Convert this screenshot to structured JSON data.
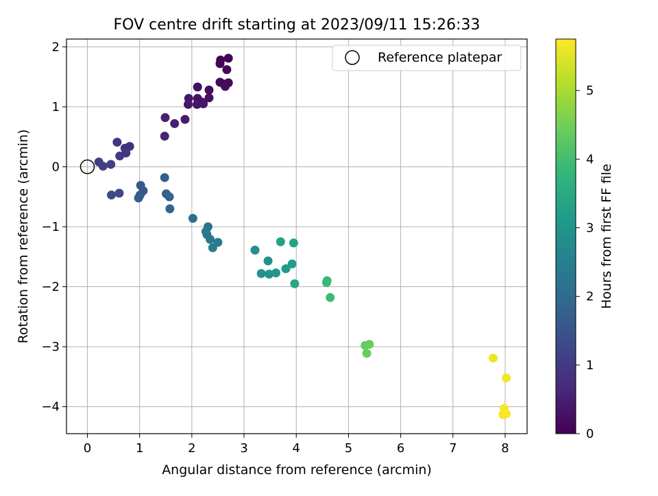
{
  "chart_data": {
    "type": "scatter",
    "title": "FOV centre drift starting at 2023/09/11 15:26:33",
    "xlabel": "Angular distance from reference (arcmin)",
    "ylabel": "Rotation from reference (arcmin)",
    "xlim": [
      -0.4,
      8.42
    ],
    "ylim": [
      -4.45,
      2.13
    ],
    "xticks": [
      0,
      1,
      2,
      3,
      4,
      5,
      6,
      7,
      8
    ],
    "xtick_labels": [
      "0",
      "1",
      "2",
      "3",
      "4",
      "5",
      "6",
      "7",
      "8"
    ],
    "yticks": [
      -4,
      -3,
      -2,
      -1,
      0,
      1,
      2
    ],
    "ytick_labels": [
      "−4",
      "−3",
      "−2",
      "−1",
      "0",
      "1",
      "2"
    ],
    "grid": true,
    "legend": {
      "position": "top-right",
      "entries": [
        "Reference platepar"
      ]
    },
    "reference_point": {
      "label": "Reference platepar",
      "x": 0,
      "y": 0
    },
    "colorbar": {
      "label": "Hours from first FF file",
      "colormap": "viridis",
      "range": [
        0,
        5.75
      ],
      "ticks": [
        0,
        1,
        2,
        3,
        4,
        5
      ],
      "tick_labels": [
        "0",
        "1",
        "2",
        "3",
        "4",
        "5"
      ],
      "stops": [
        "#440154",
        "#482878",
        "#3e4989",
        "#31688e",
        "#26828e",
        "#1f9e89",
        "#35b779",
        "#6ece58",
        "#b5de2b",
        "#fde725"
      ]
    },
    "points": [
      {
        "x": 2.55,
        "y": 1.78,
        "t": 0.02
      },
      {
        "x": 2.7,
        "y": 1.81,
        "t": 0.04
      },
      {
        "x": 2.54,
        "y": 1.72,
        "t": 0.06
      },
      {
        "x": 2.67,
        "y": 1.62,
        "t": 0.08
      },
      {
        "x": 2.54,
        "y": 1.41,
        "t": 0.1
      },
      {
        "x": 2.61,
        "y": 1.38,
        "t": 0.12
      },
      {
        "x": 2.7,
        "y": 1.4,
        "t": 0.14
      },
      {
        "x": 2.64,
        "y": 1.34,
        "t": 0.16
      },
      {
        "x": 2.33,
        "y": 1.28,
        "t": 0.2
      },
      {
        "x": 2.11,
        "y": 1.33,
        "t": 0.22
      },
      {
        "x": 2.33,
        "y": 1.15,
        "t": 0.25
      },
      {
        "x": 2.11,
        "y": 1.14,
        "t": 0.28
      },
      {
        "x": 2.19,
        "y": 1.08,
        "t": 0.3
      },
      {
        "x": 2.1,
        "y": 1.04,
        "t": 0.32
      },
      {
        "x": 2.22,
        "y": 1.05,
        "t": 0.34
      },
      {
        "x": 1.94,
        "y": 1.14,
        "t": 0.36
      },
      {
        "x": 1.93,
        "y": 1.04,
        "t": 0.38
      },
      {
        "x": 1.87,
        "y": 0.79,
        "t": 0.42
      },
      {
        "x": 1.67,
        "y": 0.72,
        "t": 0.48
      },
      {
        "x": 1.49,
        "y": 0.82,
        "t": 0.52
      },
      {
        "x": 1.48,
        "y": 0.51,
        "t": 0.58
      },
      {
        "x": 0.81,
        "y": 0.34,
        "t": 0.8
      },
      {
        "x": 0.72,
        "y": 0.31,
        "t": 0.84
      },
      {
        "x": 0.57,
        "y": 0.41,
        "t": 0.88
      },
      {
        "x": 0.74,
        "y": 0.23,
        "t": 0.92
      },
      {
        "x": 0.62,
        "y": 0.18,
        "t": 0.96
      },
      {
        "x": 0.22,
        "y": 0.08,
        "t": 1.02
      },
      {
        "x": 0.45,
        "y": 0.04,
        "t": 1.06
      },
      {
        "x": 0.3,
        "y": 0.01,
        "t": 1.1
      },
      {
        "x": 0.46,
        "y": -0.47,
        "t": 1.25
      },
      {
        "x": 0.61,
        "y": -0.44,
        "t": 1.3
      },
      {
        "x": 1.02,
        "y": -0.31,
        "t": 1.55
      },
      {
        "x": 1.07,
        "y": -0.4,
        "t": 1.6
      },
      {
        "x": 1.01,
        "y": -0.47,
        "t": 1.65
      },
      {
        "x": 0.98,
        "y": -0.52,
        "t": 1.68
      },
      {
        "x": 1.48,
        "y": -0.18,
        "t": 1.75
      },
      {
        "x": 1.51,
        "y": -0.45,
        "t": 1.8
      },
      {
        "x": 1.57,
        "y": -0.5,
        "t": 1.84
      },
      {
        "x": 1.58,
        "y": -0.7,
        "t": 1.88
      },
      {
        "x": 2.02,
        "y": -0.86,
        "t": 2.1
      },
      {
        "x": 2.31,
        "y": -1.0,
        "t": 2.2
      },
      {
        "x": 2.27,
        "y": -1.08,
        "t": 2.24
      },
      {
        "x": 2.29,
        "y": -1.13,
        "t": 2.28
      },
      {
        "x": 2.35,
        "y": -1.21,
        "t": 2.32
      },
      {
        "x": 2.5,
        "y": -1.26,
        "t": 2.36
      },
      {
        "x": 2.4,
        "y": -1.35,
        "t": 2.4
      },
      {
        "x": 3.21,
        "y": -1.39,
        "t": 2.8
      },
      {
        "x": 3.46,
        "y": -1.57,
        "t": 2.9
      },
      {
        "x": 3.33,
        "y": -1.78,
        "t": 2.95
      },
      {
        "x": 3.48,
        "y": -1.79,
        "t": 3.0
      },
      {
        "x": 3.61,
        "y": -1.77,
        "t": 3.05
      },
      {
        "x": 3.8,
        "y": -1.7,
        "t": 3.15
      },
      {
        "x": 3.92,
        "y": -1.62,
        "t": 3.2
      },
      {
        "x": 3.7,
        "y": -1.25,
        "t": 3.3
      },
      {
        "x": 3.95,
        "y": -1.27,
        "t": 3.35
      },
      {
        "x": 3.97,
        "y": -1.95,
        "t": 3.4
      },
      {
        "x": 4.58,
        "y": -1.93,
        "t": 3.85
      },
      {
        "x": 4.59,
        "y": -1.9,
        "t": 3.88
      },
      {
        "x": 4.65,
        "y": -2.18,
        "t": 3.92
      },
      {
        "x": 5.32,
        "y": -2.98,
        "t": 4.35
      },
      {
        "x": 5.4,
        "y": -2.96,
        "t": 4.4
      },
      {
        "x": 5.35,
        "y": -3.11,
        "t": 4.42
      },
      {
        "x": 7.77,
        "y": -3.19,
        "t": 5.6
      },
      {
        "x": 8.02,
        "y": -3.52,
        "t": 5.65
      },
      {
        "x": 7.98,
        "y": -4.03,
        "t": 5.68
      },
      {
        "x": 7.96,
        "y": -4.13,
        "t": 5.7
      },
      {
        "x": 8.02,
        "y": -4.12,
        "t": 5.72
      }
    ]
  }
}
